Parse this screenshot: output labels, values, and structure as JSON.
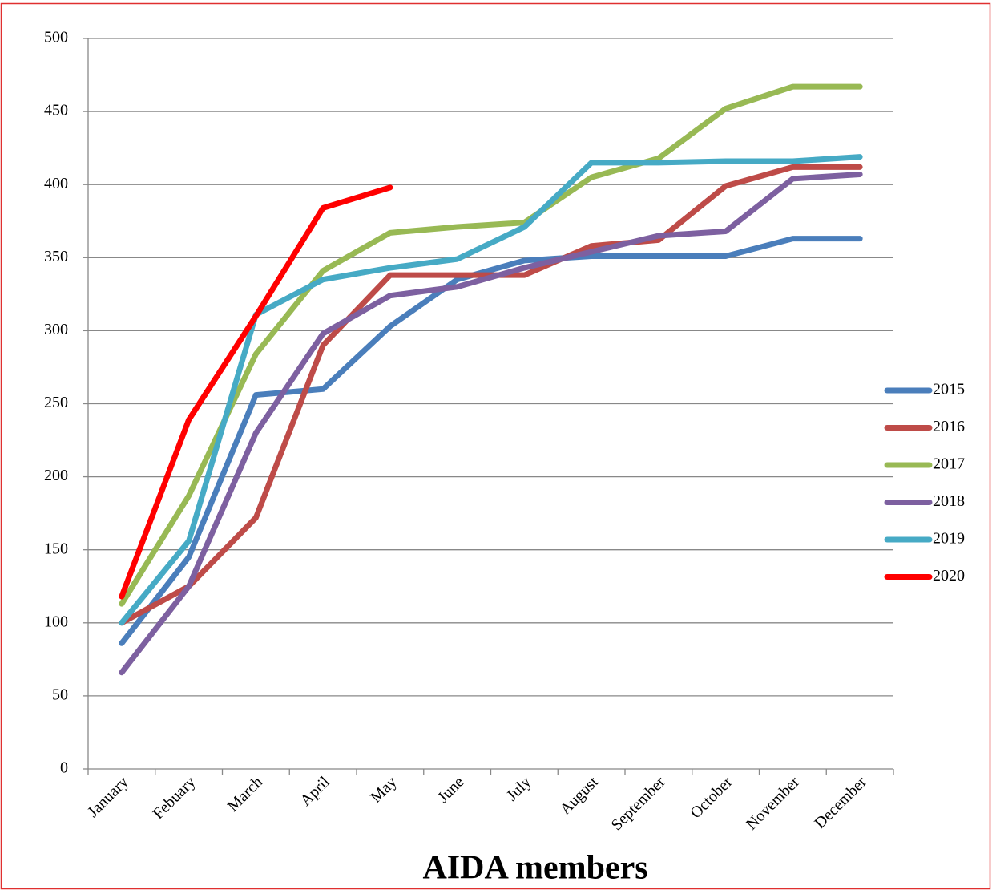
{
  "chart_data": {
    "type": "line",
    "title": "AIDA members",
    "categories": [
      "January",
      "Febuary",
      "March",
      "April",
      "May",
      "June",
      "July",
      "August",
      "September",
      "October",
      "November",
      "December"
    ],
    "series": [
      {
        "name": "2015",
        "color": "#4a7ebb",
        "values": [
          86,
          145,
          256,
          260,
          303,
          335,
          348,
          351,
          351,
          351,
          363,
          363
        ]
      },
      {
        "name": "2016",
        "color": "#be4b48",
        "values": [
          100,
          125,
          172,
          290,
          338,
          338,
          338,
          358,
          362,
          399,
          412,
          412
        ]
      },
      {
        "name": "2017",
        "color": "#98b954",
        "values": [
          113,
          187,
          284,
          341,
          367,
          371,
          374,
          405,
          418,
          452,
          467,
          467
        ]
      },
      {
        "name": "2018",
        "color": "#7d60a0",
        "values": [
          66,
          125,
          230,
          298,
          324,
          330,
          343,
          354,
          365,
          368,
          404,
          407
        ]
      },
      {
        "name": "2019",
        "color": "#46aac5",
        "values": [
          100,
          156,
          311,
          335,
          343,
          349,
          371,
          415,
          415,
          416,
          416,
          419
        ]
      },
      {
        "name": "2020",
        "color": "#ff0000",
        "values": [
          118,
          239,
          310,
          384,
          398,
          null,
          null,
          null,
          null,
          null,
          null,
          null
        ]
      }
    ],
    "ylim": [
      0,
      500
    ],
    "yticks": [
      0,
      50,
      100,
      150,
      200,
      250,
      300,
      350,
      400,
      450,
      500
    ],
    "grid": true,
    "legend": "right"
  }
}
